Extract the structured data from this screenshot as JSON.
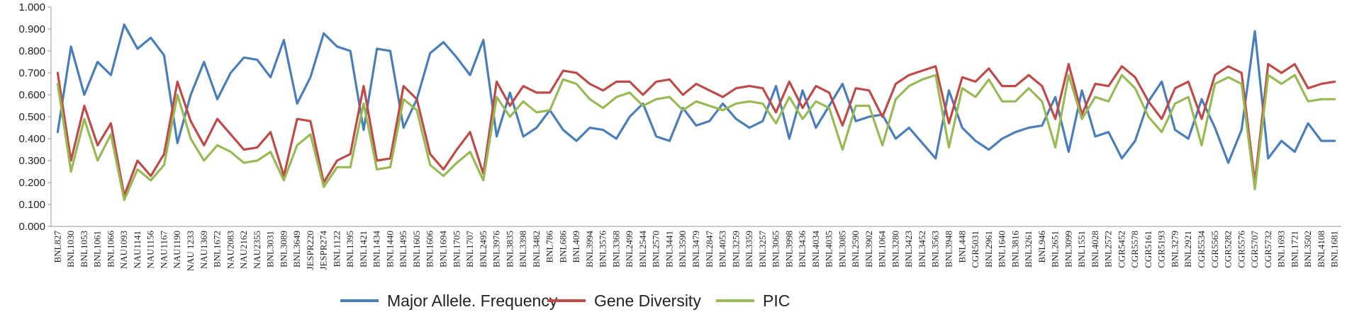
{
  "chart_data": {
    "type": "line",
    "title": "",
    "xlabel": "",
    "ylabel": "",
    "ylim": [
      0,
      1
    ],
    "y_ticks": [
      "0.000",
      "0.100",
      "0.200",
      "0.300",
      "0.400",
      "0.500",
      "0.600",
      "0.700",
      "0.800",
      "0.900",
      "1.000"
    ],
    "grid": false,
    "legend_position": "bottom",
    "categories": [
      "BNL827",
      "BNL1030",
      "BNL1053",
      "BNL1061",
      "BNL1066",
      "NAU1093",
      "NAU1141",
      "NAU1156",
      "NAU1167",
      "NAU1190",
      "NAU 1233",
      "NAU1369",
      "BNL1672",
      "NAU2083",
      "NAU2162",
      "NAU2355",
      "BNL3031",
      "BNL3089",
      "BNL3649",
      "JESPR220",
      "JESPR274",
      "BNL1122",
      "BNL1395",
      "BNL1421",
      "BNL1434",
      "BNL1440",
      "BNL1495",
      "BNL1605",
      "BNL1606",
      "BNL1694",
      "BNL1705",
      "BNL1707",
      "BNL2495",
      "BNL3976",
      "BNL3835",
      "BNL3398",
      "BNL3482",
      "BNL786",
      "BNL686",
      "BNL409",
      "BNL3994",
      "BNL3576",
      "BNL3368",
      "BNL2499",
      "BNL2544",
      "BNL2570",
      "BNL3441",
      "BNL3590",
      "BNL3479",
      "BNL2847",
      "BNL4053",
      "BNL3259",
      "BNL3359",
      "BNL3257",
      "BNL3065",
      "BNL3998",
      "BNL3436",
      "BNL4034",
      "BNL4035",
      "BNL3085",
      "BNL2590",
      "BNL3902",
      "BNL1064",
      "BNL3280",
      "BNL3423",
      "BNL3452",
      "BNL3563",
      "BNL3948",
      "BNL448",
      "CGR5031",
      "BNL2961",
      "BNL1640",
      "BNL3816",
      "BNL3261",
      "BNL946",
      "BNL2651",
      "BNL3099",
      "BNL1551",
      "BNL4028",
      "BNL2572",
      "CGR5452",
      "CGR5578",
      "CGR5161",
      "CGR5193",
      "BNL3279",
      "BNL2921",
      "CGR5534",
      "CGR5565",
      "CGR5282",
      "CGR5576",
      "CGR5707",
      "CGR5732",
      "BNL1693",
      "BNL1721",
      "BNL3502",
      "BNL4108",
      "BNL1681"
    ],
    "series": [
      {
        "name": "Major Allele. Frequency",
        "color": "#4a7ebb",
        "values": [
          0.43,
          0.82,
          0.6,
          0.75,
          0.69,
          0.92,
          0.81,
          0.86,
          0.78,
          0.38,
          0.6,
          0.75,
          0.58,
          0.7,
          0.77,
          0.76,
          0.68,
          0.85,
          0.56,
          0.68,
          0.88,
          0.82,
          0.8,
          0.44,
          0.81,
          0.8,
          0.45,
          0.58,
          0.79,
          0.84,
          0.77,
          0.69,
          0.85,
          0.41,
          0.61,
          0.41,
          0.45,
          0.53,
          0.44,
          0.39,
          0.45,
          0.44,
          0.4,
          0.5,
          0.56,
          0.41,
          0.39,
          0.54,
          0.46,
          0.48,
          0.56,
          0.49,
          0.45,
          0.48,
          0.64,
          0.4,
          0.62,
          0.45,
          0.55,
          0.65,
          0.48,
          0.5,
          0.51,
          0.4,
          0.45,
          0.38,
          0.31,
          0.62,
          0.45,
          0.39,
          0.35,
          0.4,
          0.43,
          0.45,
          0.46,
          0.59,
          0.34,
          0.62,
          0.41,
          0.43,
          0.31,
          0.39,
          0.57,
          0.66,
          0.44,
          0.4,
          0.58,
          0.45,
          0.29,
          0.44,
          0.89,
          0.31,
          0.39,
          0.34,
          0.47,
          0.39,
          0.39
        ]
      },
      {
        "name": "Gene Diversity",
        "color": "#be4b48",
        "values": [
          0.7,
          0.3,
          0.55,
          0.37,
          0.47,
          0.14,
          0.3,
          0.23,
          0.33,
          0.66,
          0.48,
          0.37,
          0.49,
          0.42,
          0.35,
          0.36,
          0.43,
          0.23,
          0.49,
          0.48,
          0.2,
          0.3,
          0.33,
          0.64,
          0.3,
          0.31,
          0.64,
          0.58,
          0.33,
          0.26,
          0.35,
          0.43,
          0.24,
          0.66,
          0.55,
          0.64,
          0.61,
          0.61,
          0.71,
          0.7,
          0.65,
          0.62,
          0.66,
          0.66,
          0.6,
          0.66,
          0.67,
          0.6,
          0.65,
          0.62,
          0.59,
          0.63,
          0.64,
          0.63,
          0.52,
          0.66,
          0.54,
          0.64,
          0.61,
          0.46,
          0.63,
          0.62,
          0.5,
          0.65,
          0.69,
          0.71,
          0.73,
          0.47,
          0.68,
          0.66,
          0.72,
          0.64,
          0.64,
          0.69,
          0.64,
          0.49,
          0.74,
          0.51,
          0.65,
          0.64,
          0.73,
          0.68,
          0.57,
          0.49,
          0.63,
          0.66,
          0.49,
          0.69,
          0.73,
          0.7,
          0.2,
          0.74,
          0.7,
          0.74,
          0.63,
          0.65,
          0.66
        ]
      },
      {
        "name": "PIC",
        "color": "#98b954",
        "values": [
          0.65,
          0.25,
          0.49,
          0.3,
          0.42,
          0.12,
          0.26,
          0.21,
          0.28,
          0.6,
          0.4,
          0.3,
          0.37,
          0.34,
          0.29,
          0.3,
          0.34,
          0.21,
          0.37,
          0.42,
          0.18,
          0.27,
          0.27,
          0.56,
          0.26,
          0.27,
          0.58,
          0.53,
          0.28,
          0.23,
          0.29,
          0.34,
          0.21,
          0.59,
          0.5,
          0.57,
          0.52,
          0.53,
          0.67,
          0.65,
          0.58,
          0.54,
          0.59,
          0.61,
          0.55,
          0.58,
          0.59,
          0.53,
          0.57,
          0.55,
          0.53,
          0.56,
          0.57,
          0.56,
          0.47,
          0.59,
          0.49,
          0.57,
          0.54,
          0.35,
          0.55,
          0.55,
          0.37,
          0.58,
          0.64,
          0.67,
          0.69,
          0.36,
          0.63,
          0.59,
          0.67,
          0.57,
          0.57,
          0.63,
          0.57,
          0.36,
          0.69,
          0.49,
          0.59,
          0.57,
          0.69,
          0.63,
          0.5,
          0.43,
          0.56,
          0.59,
          0.37,
          0.65,
          0.68,
          0.65,
          0.17,
          0.69,
          0.65,
          0.69,
          0.57,
          0.58,
          0.58
        ]
      }
    ]
  }
}
